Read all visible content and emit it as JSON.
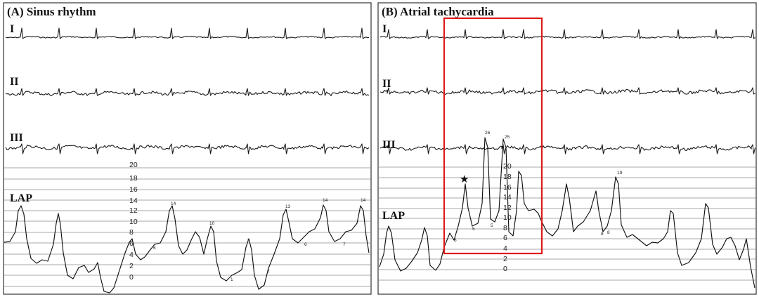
{
  "figure": {
    "colors": {
      "highlight": "#e01818",
      "trace": "#1a1a1a",
      "grid": "#8a8a8a"
    },
    "panels": [
      {
        "title": "(A) Sinus rhythm",
        "leads": [
          "I",
          "II",
          "III"
        ],
        "lap_label": "LAP",
        "scale": [
          "20",
          "18",
          "16",
          "14",
          "12",
          "10",
          "8",
          "6",
          "4",
          "2",
          "0"
        ],
        "peak_labels": [
          "14",
          "10",
          "13",
          "14",
          "14",
          "6",
          "6",
          "7",
          "7",
          "2",
          "1"
        ]
      },
      {
        "title": "(B) Atrial tachycardia",
        "leads": [
          "I",
          "II",
          "III"
        ],
        "lap_label": "LAP",
        "scale": [
          "20",
          "18",
          "16",
          "14",
          "12",
          "10",
          "8",
          "6",
          "4",
          "2",
          "0"
        ],
        "peak_labels": [
          "26",
          "25",
          "19",
          "6",
          "5",
          "5",
          "8",
          "8"
        ],
        "marker": "★"
      }
    ]
  }
}
